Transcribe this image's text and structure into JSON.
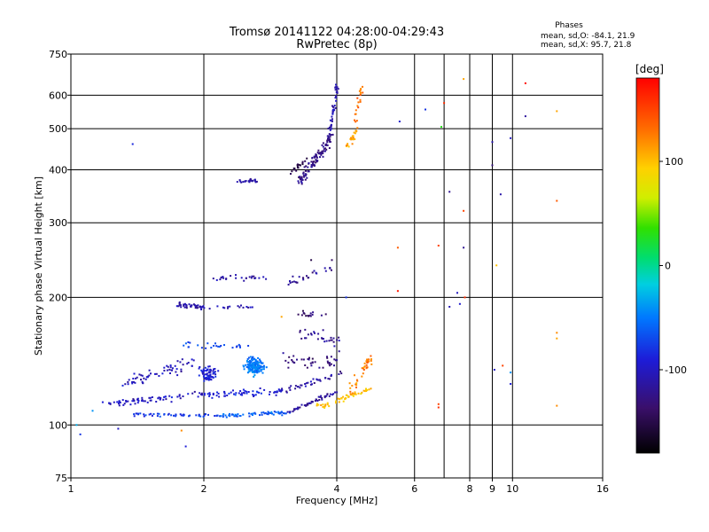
{
  "chart_data": {
    "type": "scatter",
    "title_line1": "Tromsø 20141122 04:28:00-04:29:43",
    "title_line2": "RwPretec (8p)",
    "phases": {
      "heading": "Phases",
      "line_o": "mean, sd,O: -84.1, 21.9",
      "line_x": "mean, sd,X:  95.7, 21.8"
    },
    "xlabel": "Frequency [MHz]",
    "ylabel": "Stationary phase Virtual Height [km]",
    "x_scale": "log",
    "y_scale": "log",
    "xlim": [
      1,
      16
    ],
    "ylim": [
      75,
      750
    ],
    "x_ticks": [
      1,
      2,
      4,
      6,
      8,
      9,
      10,
      16
    ],
    "x_tick_labels": [
      "1",
      "2",
      "4",
      "6",
      "8",
      "9",
      "10",
      "16"
    ],
    "x_gridlines": [
      2,
      4,
      6,
      7,
      8,
      9,
      10
    ],
    "y_ticks": [
      75,
      100,
      200,
      300,
      400,
      500,
      600,
      750
    ],
    "y_tick_labels": [
      "75",
      "100",
      "200",
      "300",
      "400",
      "500",
      "600",
      "750"
    ],
    "y_gridlines": [
      100,
      200,
      300,
      400,
      500,
      600
    ],
    "grid": true,
    "colorbar": {
      "label": "[deg]",
      "vmin": -180,
      "vmax": 180,
      "ticks": [
        100,
        0,
        -100
      ],
      "tick_labels": [
        "100",
        "0",
        "-100"
      ]
    },
    "clusters": [
      {
        "kind": "seg",
        "f0": 3.85,
        "h0": 485,
        "f1": 4.02,
        "h1": 640,
        "n": 45,
        "phase": -110,
        "sx": 0.01,
        "sy": 0.02
      },
      {
        "kind": "seg",
        "f0": 3.3,
        "h0": 375,
        "f1": 3.9,
        "h1": 480,
        "n": 110,
        "phase": -125,
        "sx": 0.018,
        "sy": 0.03
      },
      {
        "kind": "seg",
        "f0": 3.1,
        "h0": 392,
        "f1": 3.4,
        "h1": 420,
        "n": 20,
        "phase": -145,
        "sx": 0.02,
        "sy": 0.02
      },
      {
        "kind": "seg",
        "f0": 4.15,
        "h0": 440,
        "f1": 4.45,
        "h1": 500,
        "n": 25,
        "phase": 110,
        "sx": 0.01,
        "sy": 0.03
      },
      {
        "kind": "seg",
        "f0": 4.4,
        "h0": 510,
        "f1": 4.55,
        "h1": 630,
        "n": 20,
        "phase": 130,
        "sx": 0.01,
        "sy": 0.02
      },
      {
        "kind": "seg",
        "f0": 2.4,
        "h0": 375,
        "f1": 2.7,
        "h1": 378,
        "n": 25,
        "phase": -110,
        "sx": 0.02,
        "sy": 0.01
      },
      {
        "kind": "seg",
        "f0": 2.1,
        "h0": 222,
        "f1": 2.8,
        "h1": 222,
        "n": 25,
        "phase": -110,
        "sx": 0.02,
        "sy": 0.02
      },
      {
        "kind": "seg",
        "f0": 3.1,
        "h0": 215,
        "f1": 3.9,
        "h1": 235,
        "n": 25,
        "phase": -115,
        "sx": 0.02,
        "sy": 0.025
      },
      {
        "kind": "seg",
        "f0": 1.75,
        "h0": 192,
        "f1": 2.0,
        "h1": 190,
        "n": 40,
        "phase": -110,
        "sx": 0.02,
        "sy": 0.015
      },
      {
        "kind": "seg",
        "f0": 2.05,
        "h0": 190,
        "f1": 2.6,
        "h1": 190,
        "n": 15,
        "phase": -105,
        "sx": 0.02,
        "sy": 0.01
      },
      {
        "kind": "seg",
        "f0": 3.3,
        "h0": 183,
        "f1": 3.9,
        "h1": 182,
        "n": 15,
        "phase": -135,
        "sx": 0.02,
        "sy": 0.015
      },
      {
        "kind": "seg",
        "f0": 1.8,
        "h0": 154,
        "f1": 2.6,
        "h1": 153,
        "n": 25,
        "phase": -70,
        "sx": 0.02,
        "sy": 0.02
      },
      {
        "kind": "seg",
        "f0": 3.3,
        "h0": 165,
        "f1": 4.1,
        "h1": 155,
        "n": 30,
        "phase": -120,
        "sx": 0.02,
        "sy": 0.04
      },
      {
        "kind": "seg",
        "f0": 1.3,
        "h0": 125,
        "f1": 1.9,
        "h1": 140,
        "n": 60,
        "phase": -105,
        "sx": 0.02,
        "sy": 0.04
      },
      {
        "kind": "seg",
        "f0": 1.2,
        "h0": 112,
        "f1": 2.0,
        "h1": 118,
        "n": 70,
        "phase": -100,
        "sx": 0.02,
        "sy": 0.02
      },
      {
        "kind": "seg",
        "f0": 2.0,
        "h0": 118,
        "f1": 3.0,
        "h1": 120,
        "n": 60,
        "phase": -90,
        "sx": 0.02,
        "sy": 0.02
      },
      {
        "kind": "seg",
        "f0": 3.0,
        "h0": 120,
        "f1": 4.1,
        "h1": 132,
        "n": 40,
        "phase": -110,
        "sx": 0.015,
        "sy": 0.015
      },
      {
        "kind": "seg",
        "f0": 1.4,
        "h0": 106,
        "f1": 2.2,
        "h1": 105,
        "n": 50,
        "phase": -80,
        "sx": 0.02,
        "sy": 0.01
      },
      {
        "kind": "seg",
        "f0": 2.2,
        "h0": 105,
        "f1": 3.1,
        "h1": 107,
        "n": 60,
        "phase": -60,
        "sx": 0.02,
        "sy": 0.01
      },
      {
        "kind": "seg",
        "f0": 3.1,
        "h0": 107,
        "f1": 4.0,
        "h1": 120,
        "n": 50,
        "phase": -115,
        "sx": 0.01,
        "sy": 0.01
      },
      {
        "kind": "seg",
        "f0": 3.6,
        "h0": 110,
        "f1": 4.8,
        "h1": 122,
        "n": 50,
        "phase": 100,
        "sx": 0.02,
        "sy": 0.015
      },
      {
        "kind": "seg",
        "f0": 4.3,
        "h0": 120,
        "f1": 4.8,
        "h1": 145,
        "n": 40,
        "phase": 125,
        "sx": 0.015,
        "sy": 0.03
      },
      {
        "kind": "blob",
        "f0": 2.6,
        "h0": 138,
        "n": 160,
        "phase": -50,
        "sx": 0.05,
        "sy": 0.045
      },
      {
        "kind": "blob",
        "f0": 2.05,
        "h0": 132,
        "n": 70,
        "phase": -90,
        "sx": 0.045,
        "sy": 0.04
      },
      {
        "kind": "seg",
        "f0": 3.1,
        "h0": 143,
        "f1": 4.2,
        "h1": 140,
        "n": 40,
        "phase": -130,
        "sx": 0.03,
        "sy": 0.05
      }
    ],
    "isolated_points": [
      {
        "f": 1.38,
        "h": 460,
        "phase": -85
      },
      {
        "f": 5.55,
        "h": 520,
        "phase": -95
      },
      {
        "f": 6.35,
        "h": 555,
        "phase": -80
      },
      {
        "f": 6.9,
        "h": 505,
        "phase": 30
      },
      {
        "f": 7.0,
        "h": 575,
        "phase": 160
      },
      {
        "f": 7.2,
        "h": 355,
        "phase": -120
      },
      {
        "f": 7.75,
        "h": 320,
        "phase": 150
      },
      {
        "f": 7.75,
        "h": 655,
        "phase": 110
      },
      {
        "f": 7.75,
        "h": 262,
        "phase": -120
      },
      {
        "f": 9.0,
        "h": 465,
        "phase": -110
      },
      {
        "f": 9.0,
        "h": 410,
        "phase": -130
      },
      {
        "f": 9.4,
        "h": 350,
        "phase": -110
      },
      {
        "f": 9.9,
        "h": 475,
        "phase": -100
      },
      {
        "f": 10.7,
        "h": 640,
        "phase": 175
      },
      {
        "f": 10.7,
        "h": 535,
        "phase": -115
      },
      {
        "f": 12.6,
        "h": 550,
        "phase": 110
      },
      {
        "f": 12.6,
        "h": 338,
        "phase": 140
      },
      {
        "f": 5.5,
        "h": 262,
        "phase": 140
      },
      {
        "f": 5.5,
        "h": 207,
        "phase": 170
      },
      {
        "f": 6.8,
        "h": 265,
        "phase": 150
      },
      {
        "f": 7.2,
        "h": 190,
        "phase": -105
      },
      {
        "f": 7.5,
        "h": 205,
        "phase": -100
      },
      {
        "f": 7.6,
        "h": 193,
        "phase": -95
      },
      {
        "f": 7.8,
        "h": 200,
        "phase": 160
      },
      {
        "f": 9.2,
        "h": 238,
        "phase": 100
      },
      {
        "f": 9.1,
        "h": 135,
        "phase": -100
      },
      {
        "f": 9.5,
        "h": 138,
        "phase": 150
      },
      {
        "f": 9.9,
        "h": 125,
        "phase": -90
      },
      {
        "f": 9.9,
        "h": 133,
        "phase": -40
      },
      {
        "f": 12.6,
        "h": 160,
        "phase": 110
      },
      {
        "f": 12.6,
        "h": 165,
        "phase": 120
      },
      {
        "f": 12.6,
        "h": 111,
        "phase": 120
      },
      {
        "f": 6.8,
        "h": 110,
        "phase": 160
      },
      {
        "f": 6.8,
        "h": 112,
        "phase": 150
      },
      {
        "f": 1.03,
        "h": 100,
        "phase": -30
      },
      {
        "f": 1.05,
        "h": 95,
        "phase": -80
      },
      {
        "f": 1.12,
        "h": 108,
        "phase": -40
      },
      {
        "f": 1.28,
        "h": 98,
        "phase": -100
      },
      {
        "f": 1.82,
        "h": 89,
        "phase": -90
      },
      {
        "f": 1.78,
        "h": 97,
        "phase": 120
      },
      {
        "f": 3.5,
        "h": 245,
        "phase": -150
      },
      {
        "f": 3.9,
        "h": 245,
        "phase": -140
      },
      {
        "f": 4.2,
        "h": 200,
        "phase": -80
      },
      {
        "f": 3.0,
        "h": 180,
        "phase": 110
      }
    ]
  }
}
